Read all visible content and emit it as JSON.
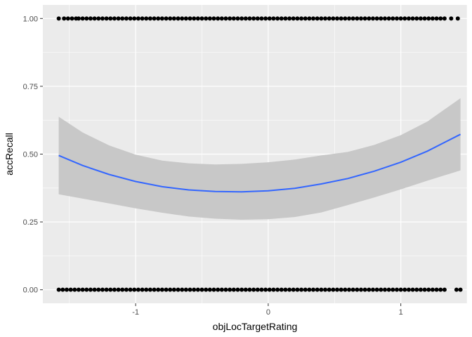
{
  "chart_data": {
    "type": "scatter",
    "title": "",
    "xlabel": "objLocTargetRating",
    "ylabel": "accRecall",
    "xlim": [
      -1.7,
      1.5
    ],
    "ylim": [
      -0.05,
      1.05
    ],
    "x_ticks": [
      {
        "value": -1,
        "label": "-1"
      },
      {
        "value": 0,
        "label": "0"
      },
      {
        "value": 1,
        "label": "1"
      }
    ],
    "y_ticks": [
      {
        "value": 0,
        "label": "0.00"
      },
      {
        "value": 0.25,
        "label": "0.25"
      },
      {
        "value": 0.5,
        "label": "0.50"
      },
      {
        "value": 0.75,
        "label": "0.75"
      },
      {
        "value": 1,
        "label": "1.00"
      }
    ],
    "grid": true,
    "legend": "none",
    "colors": {
      "panel_background": "#ebebeb",
      "grid": "#ffffff",
      "points": "#000000",
      "smooth_line": "#3366ff",
      "confidence_band": "#c8c8c8"
    },
    "points_y1_x": [
      -1.58,
      -1.54,
      -1.51,
      -1.48,
      -1.45,
      -1.43,
      -1.4,
      -1.37,
      -1.34,
      -1.31,
      -1.28,
      -1.25,
      -1.22,
      -1.19,
      -1.16,
      -1.13,
      -1.1,
      -1.07,
      -1.04,
      -1.01,
      -0.98,
      -0.95,
      -0.92,
      -0.89,
      -0.86,
      -0.83,
      -0.8,
      -0.77,
      -0.74,
      -0.71,
      -0.68,
      -0.65,
      -0.62,
      -0.59,
      -0.56,
      -0.53,
      -0.5,
      -0.47,
      -0.44,
      -0.41,
      -0.38,
      -0.35,
      -0.32,
      -0.29,
      -0.26,
      -0.23,
      -0.2,
      -0.17,
      -0.14,
      -0.11,
      -0.08,
      -0.05,
      -0.02,
      0.01,
      0.04,
      0.07,
      0.1,
      0.13,
      0.16,
      0.19,
      0.22,
      0.25,
      0.28,
      0.31,
      0.34,
      0.37,
      0.4,
      0.43,
      0.46,
      0.49,
      0.52,
      0.55,
      0.58,
      0.61,
      0.64,
      0.67,
      0.7,
      0.73,
      0.76,
      0.79,
      0.82,
      0.85,
      0.88,
      0.91,
      0.94,
      0.97,
      1.0,
      1.03,
      1.06,
      1.09,
      1.12,
      1.15,
      1.18,
      1.21,
      1.24,
      1.27,
      1.3,
      1.33,
      1.38,
      1.43
    ],
    "points_y0_x": [
      -1.58,
      -1.55,
      -1.52,
      -1.49,
      -1.46,
      -1.43,
      -1.4,
      -1.37,
      -1.34,
      -1.31,
      -1.28,
      -1.25,
      -1.22,
      -1.19,
      -1.16,
      -1.13,
      -1.1,
      -1.07,
      -1.04,
      -1.01,
      -0.98,
      -0.95,
      -0.92,
      -0.89,
      -0.86,
      -0.83,
      -0.8,
      -0.77,
      -0.74,
      -0.71,
      -0.68,
      -0.65,
      -0.62,
      -0.59,
      -0.56,
      -0.53,
      -0.5,
      -0.47,
      -0.44,
      -0.41,
      -0.38,
      -0.35,
      -0.32,
      -0.29,
      -0.26,
      -0.23,
      -0.2,
      -0.17,
      -0.14,
      -0.11,
      -0.08,
      -0.05,
      -0.02,
      0.01,
      0.04,
      0.07,
      0.1,
      0.13,
      0.16,
      0.19,
      0.22,
      0.25,
      0.28,
      0.31,
      0.34,
      0.37,
      0.4,
      0.43,
      0.46,
      0.49,
      0.52,
      0.55,
      0.58,
      0.61,
      0.64,
      0.67,
      0.7,
      0.73,
      0.76,
      0.79,
      0.82,
      0.85,
      0.88,
      0.91,
      0.94,
      0.97,
      1.0,
      1.03,
      1.06,
      1.09,
      1.12,
      1.15,
      1.18,
      1.21,
      1.24,
      1.27,
      1.3,
      1.33,
      1.42,
      1.45
    ],
    "smooth": {
      "x": [
        -1.58,
        -1.4,
        -1.2,
        -1.0,
        -0.8,
        -0.6,
        -0.4,
        -0.2,
        0.0,
        0.2,
        0.4,
        0.6,
        0.8,
        1.0,
        1.2,
        1.45
      ],
      "y": [
        0.495,
        0.458,
        0.425,
        0.399,
        0.38,
        0.368,
        0.362,
        0.361,
        0.365,
        0.374,
        0.39,
        0.41,
        0.437,
        0.47,
        0.511,
        0.573
      ],
      "lower": [
        0.352,
        0.336,
        0.318,
        0.3,
        0.284,
        0.27,
        0.262,
        0.258,
        0.26,
        0.268,
        0.285,
        0.312,
        0.34,
        0.37,
        0.402,
        0.44
      ],
      "upper": [
        0.638,
        0.58,
        0.532,
        0.498,
        0.476,
        0.466,
        0.462,
        0.464,
        0.47,
        0.48,
        0.495,
        0.508,
        0.534,
        0.57,
        0.62,
        0.706
      ]
    }
  }
}
